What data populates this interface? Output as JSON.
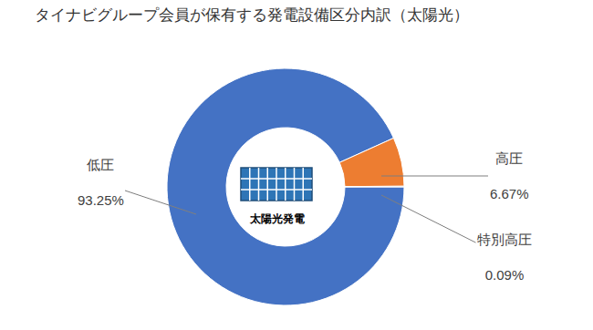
{
  "chart_data": {
    "type": "pie",
    "title": "タイナビグループ会員が保有する発電設備区分内訳（太陽光）",
    "center_label": "太陽光発電",
    "categories": [
      "低圧",
      "高圧",
      "特別高圧"
    ],
    "values": [
      93.25,
      6.67,
      0.09
    ],
    "value_labels": [
      "93.25%",
      "6.67%",
      "0.09%"
    ],
    "colors": [
      "#4472c4",
      "#ed7d31",
      "#a5a5a5"
    ],
    "data_labels": true
  }
}
